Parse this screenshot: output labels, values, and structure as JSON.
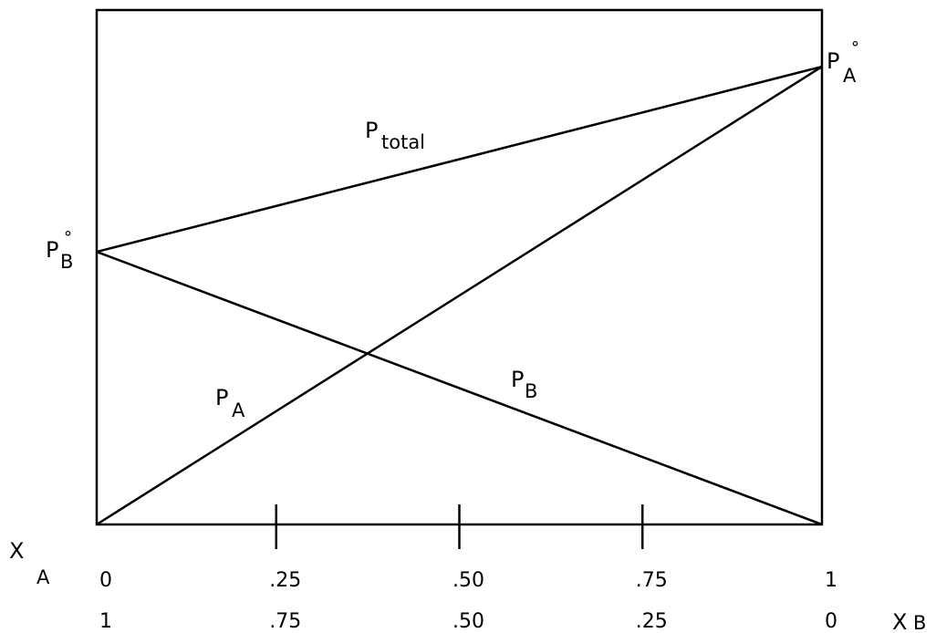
{
  "chart_data": {
    "type": "line",
    "title": "",
    "x_axis_top": {
      "symbol": "X",
      "subscript": "A",
      "ticks": [
        {
          "value": 0,
          "label": "0"
        },
        {
          "value": 0.25,
          "label": ".25"
        },
        {
          "value": 0.5,
          "label": ".50"
        },
        {
          "value": 0.75,
          "label": ".75"
        },
        {
          "value": 1,
          "label": "1"
        }
      ]
    },
    "x_axis_bottom": {
      "symbol": "X",
      "subscript": "B",
      "tick_labels": [
        "1",
        ".75",
        ".50",
        ".25",
        "0"
      ]
    },
    "xlim": [
      0,
      1
    ],
    "ylim": [
      0,
      1
    ],
    "series": [
      {
        "name": "P total",
        "x": [
          0,
          1
        ],
        "y": [
          0.53,
          0.89
        ]
      },
      {
        "name": "P A",
        "x": [
          0,
          1
        ],
        "y": [
          0,
          0.89
        ]
      },
      {
        "name": "P B",
        "x": [
          0,
          1
        ],
        "y": [
          0.53,
          0
        ]
      }
    ],
    "annotations": [
      {
        "id": "pa0",
        "main": "P",
        "sub": "A",
        "sup": "°"
      },
      {
        "id": "pb0",
        "main": "P",
        "sub": "B",
        "sup": "°"
      },
      {
        "id": "ptotal",
        "main": "P",
        "sub": "total"
      },
      {
        "id": "pa",
        "main": "P",
        "sub": "A"
      },
      {
        "id": "pb",
        "main": "P",
        "sub": "B"
      }
    ],
    "grid": false,
    "legend": "none"
  }
}
